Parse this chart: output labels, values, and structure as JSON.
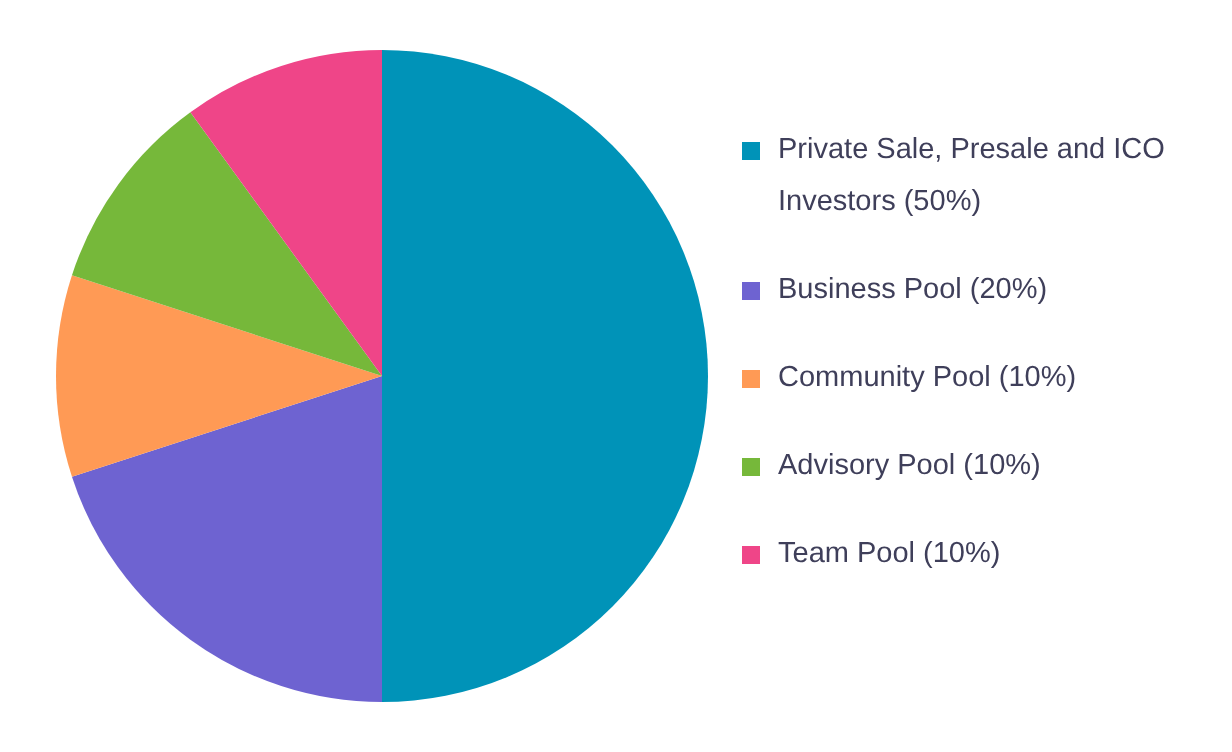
{
  "chart_data": {
    "type": "pie",
    "categories": [
      "Private Sale, Presale and ICO Investors (50%)",
      "Business Pool (20%)",
      "Community Pool (10%)",
      "Advisory Pool (10%)",
      "Team Pool (10%)"
    ],
    "values": [
      50,
      20,
      10,
      10,
      10
    ],
    "colors": [
      "#0093b8",
      "#6e63d1",
      "#ff9a55",
      "#76b83a",
      "#ef4588"
    ],
    "legend": "right"
  }
}
